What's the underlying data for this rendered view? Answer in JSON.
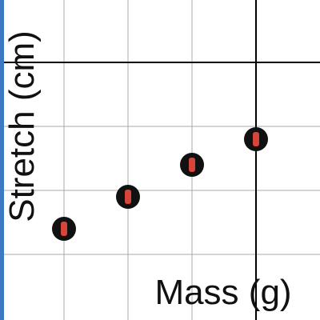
{
  "chart_data": {
    "type": "scatter",
    "title": "",
    "xlabel": "Mass (g)",
    "ylabel": "Stretch (cm)",
    "grid": true,
    "points": [
      {
        "x": 1,
        "y": 1.4
      },
      {
        "x": 2,
        "y": 1.9
      },
      {
        "x": 3,
        "y": 2.4
      },
      {
        "x": 4,
        "y": 2.8
      }
    ],
    "colors": {
      "marker_outline": "#111111",
      "marker_fill": "#d9453a",
      "major_line": "#000000",
      "minor_grid": "#aaaaaa",
      "left_axis": "#3b7ac2"
    }
  }
}
